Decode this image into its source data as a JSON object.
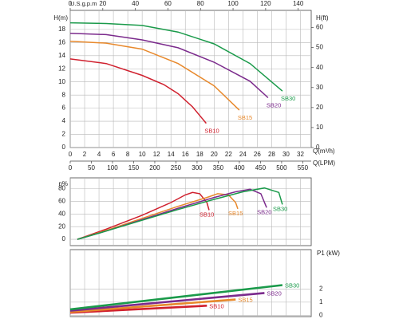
{
  "chart_data": [
    {
      "type": "line",
      "grid": true,
      "x_label": "Q(m³/h)",
      "xlim": [
        0,
        33.5
      ],
      "xticks": [
        0,
        2,
        4,
        6,
        8,
        10,
        12,
        14,
        16,
        18,
        20,
        22,
        24,
        26,
        28,
        30,
        32
      ],
      "y_label": "H(m)",
      "ylim": [
        0,
        20.9
      ],
      "yticks": [
        0,
        2,
        4,
        6,
        8,
        10,
        12,
        14,
        16,
        18
      ],
      "y2_label": "H(ft)",
      "y2lim": [
        0,
        68.6
      ],
      "y2ticks": [
        0,
        10,
        20,
        30,
        40,
        50,
        60
      ],
      "top_axis": {
        "label": "U.S.g.p.m",
        "xlim": [
          0,
          148
        ],
        "xticks": [
          0,
          20,
          40,
          60,
          80,
          100,
          120,
          140
        ]
      },
      "bottom_axis": {
        "label": "Q(LPM)",
        "xlim": [
          0,
          570
        ],
        "xticks": [
          0,
          50,
          100,
          150,
          200,
          250,
          300,
          350,
          400,
          450,
          500,
          550
        ]
      },
      "series": [
        {
          "name": "SB10",
          "color": "#d0202e",
          "x": [
            0,
            5,
            10,
            13,
            15,
            17,
            18.9
          ],
          "values": [
            13.5,
            12.8,
            11,
            9.6,
            8.2,
            6.2,
            3.7
          ]
        },
        {
          "name": "SB15",
          "color": "#e8892c",
          "x": [
            0,
            5,
            10,
            15,
            20,
            23.5
          ],
          "values": [
            16.2,
            15.9,
            15,
            12.8,
            9.4,
            5.7
          ]
        },
        {
          "name": "SB20",
          "color": "#7b2a8c",
          "x": [
            0,
            5,
            10,
            15,
            20,
            25,
            27.5
          ],
          "values": [
            17.4,
            17.2,
            16.4,
            15.2,
            13,
            10.1,
            7.6
          ]
        },
        {
          "name": "SB30",
          "color": "#1a9a4a",
          "x": [
            0,
            5,
            10,
            15,
            20,
            25,
            29.5
          ],
          "values": [
            19,
            18.9,
            18.6,
            17.6,
            15.8,
            12.8,
            8.6
          ]
        }
      ]
    },
    {
      "type": "line",
      "grid": true,
      "xlim": [
        0,
        33.5
      ],
      "xticks": [
        0,
        2,
        4,
        6,
        8,
        10,
        12,
        14,
        16,
        18,
        20,
        22,
        24,
        26,
        28,
        30,
        32
      ],
      "y_label": "η%",
      "ylim": [
        -10,
        97
      ],
      "yticks": [
        0,
        20,
        40,
        60,
        80
      ],
      "series": [
        {
          "name": "SB10",
          "color": "#d0202e",
          "x": [
            1,
            5,
            10,
            14,
            16,
            17,
            18,
            19,
            19.3
          ],
          "values": [
            0,
            16,
            38,
            58,
            70,
            74,
            72,
            58,
            46
          ]
        },
        {
          "name": "SB15",
          "color": "#e8892c",
          "x": [
            1,
            5,
            10,
            15,
            19,
            20.5,
            22,
            23,
            23.3
          ],
          "values": [
            0,
            14,
            33,
            52,
            66,
            72,
            70,
            58,
            48
          ]
        },
        {
          "name": "SB20",
          "color": "#7b2a8c",
          "x": [
            1,
            5,
            10,
            15,
            20,
            23,
            25,
            26.5,
            27.3
          ],
          "values": [
            0,
            13,
            31,
            49,
            66,
            75,
            79,
            72,
            50
          ]
        },
        {
          "name": "SB30",
          "color": "#1a9a4a",
          "x": [
            1,
            5,
            10,
            15,
            20,
            24,
            27,
            29,
            29.5
          ],
          "values": [
            0,
            13,
            30,
            47,
            63,
            75,
            81,
            74,
            55
          ]
        }
      ]
    },
    {
      "type": "line",
      "grid": true,
      "y_side": "right",
      "xlim": [
        0,
        33.5
      ],
      "xticks": [
        0,
        2,
        4,
        6,
        8,
        10,
        12,
        14,
        16,
        18,
        20,
        22,
        24,
        26,
        28,
        30,
        32
      ],
      "y_label": "P1 (kW)",
      "ylim": [
        -0.1,
        5
      ],
      "yticks": [
        0,
        1,
        2
      ],
      "series": [
        {
          "name": "SB10",
          "color": "#d0202e",
          "x": [
            0,
            19
          ],
          "values": [
            0.2,
            0.73
          ]
        },
        {
          "name": "SB15",
          "color": "#e8892c",
          "x": [
            0,
            23
          ],
          "values": [
            0.25,
            1.2
          ]
        },
        {
          "name": "SB20",
          "color": "#7b2a8c",
          "x": [
            0,
            27
          ],
          "values": [
            0.35,
            1.7
          ]
        },
        {
          "name": "SB30",
          "color": "#1a9a4a",
          "x": [
            0,
            29.5
          ],
          "values": [
            0.45,
            2.3
          ]
        }
      ]
    }
  ]
}
